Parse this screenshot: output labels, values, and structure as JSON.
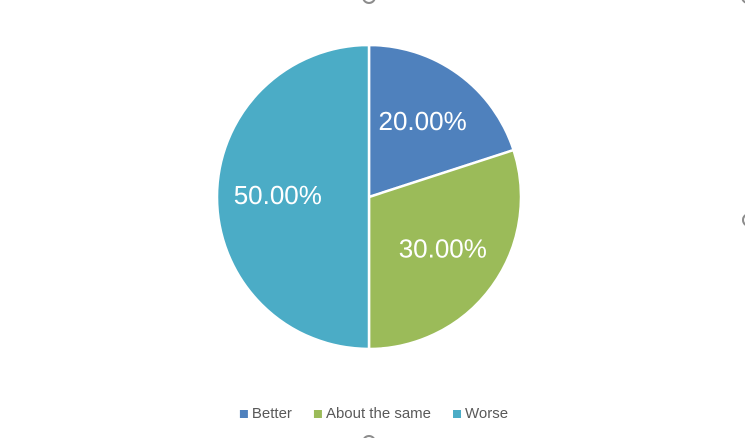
{
  "chart_data": {
    "type": "pie",
    "categories": [
      "Better",
      "About the same",
      "Worse"
    ],
    "values": [
      20,
      30,
      50
    ],
    "value_labels": [
      "20.00%",
      "30.00%",
      "50.00%"
    ],
    "colors": [
      "#4f81bd",
      "#9bbb59",
      "#4bacc6"
    ],
    "legend": "bottom"
  }
}
